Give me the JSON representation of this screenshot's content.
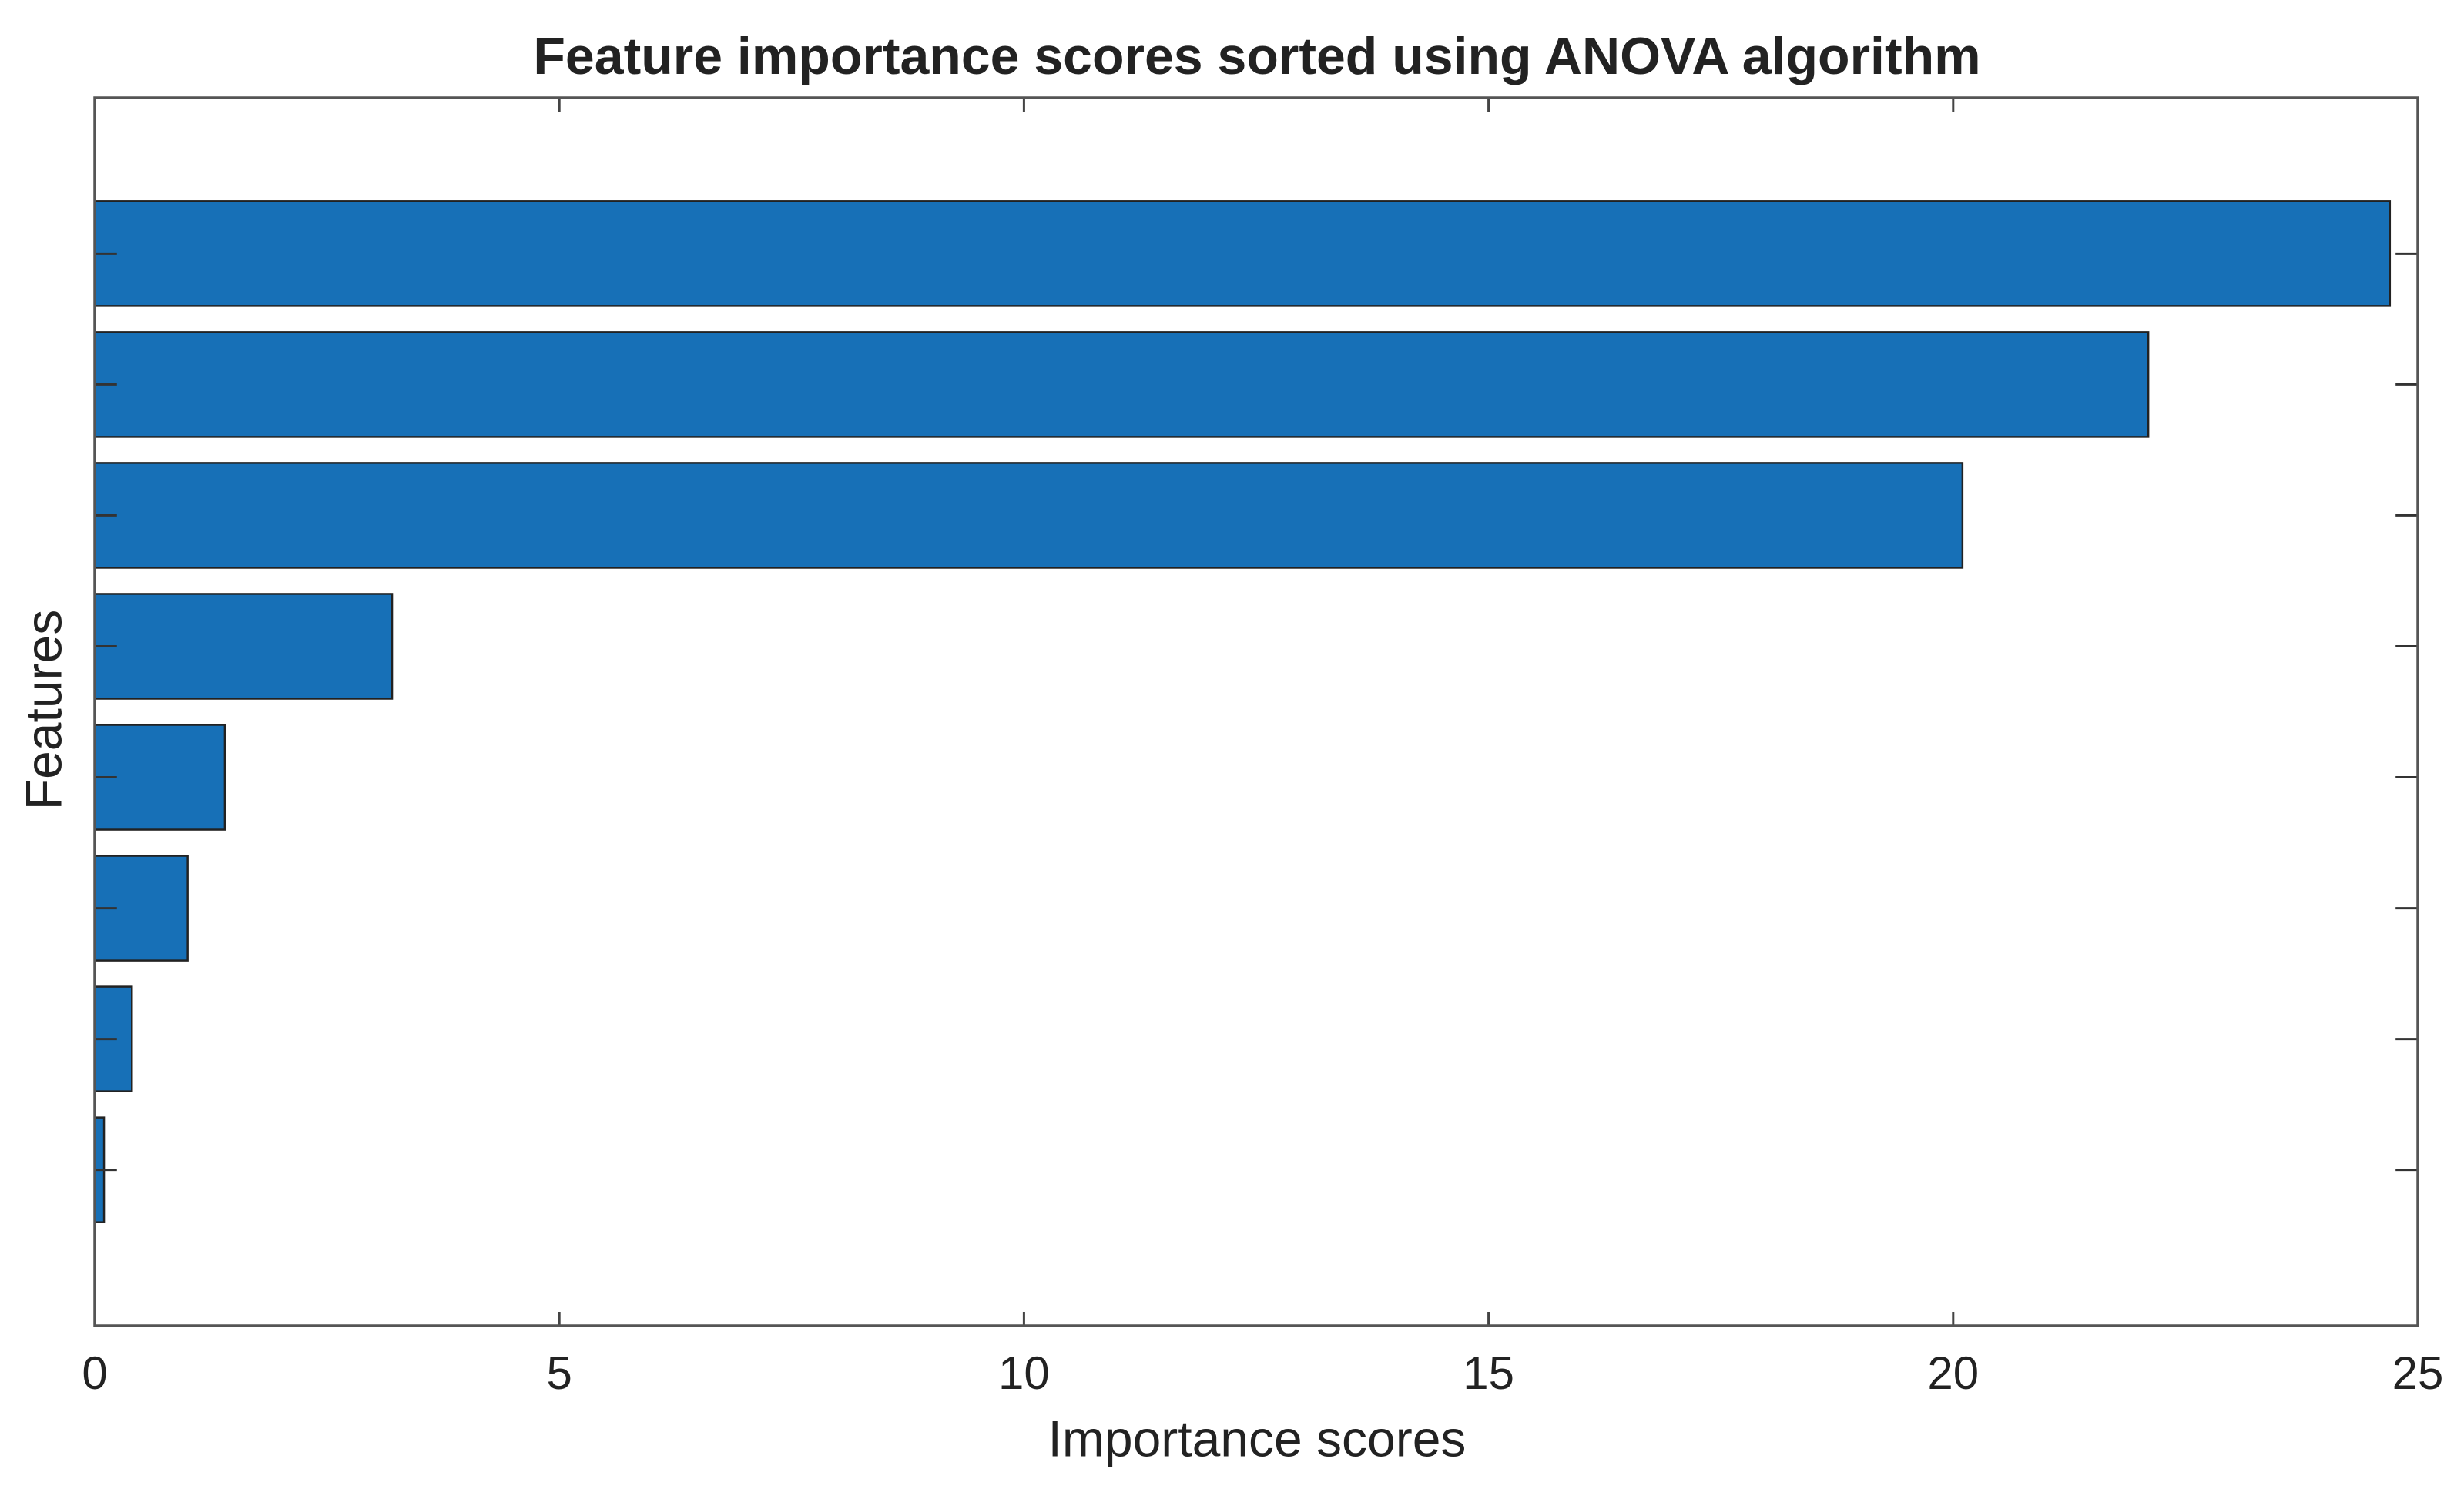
{
  "chart_data": {
    "type": "barh",
    "title": "Feature importance scores sorted using ANOVA algorithm",
    "xlabel": "Importance scores",
    "ylabel": "Features",
    "categories": [
      null,
      null,
      null,
      null,
      null,
      null,
      null,
      null
    ],
    "values": [
      24.7,
      22.1,
      20.1,
      3.2,
      1.4,
      1.0,
      0.4,
      0.1
    ],
    "color": "#1770b7",
    "xlim": [
      0,
      25
    ],
    "xticks": [
      0,
      5,
      10,
      15,
      20,
      25
    ],
    "grid": false
  }
}
